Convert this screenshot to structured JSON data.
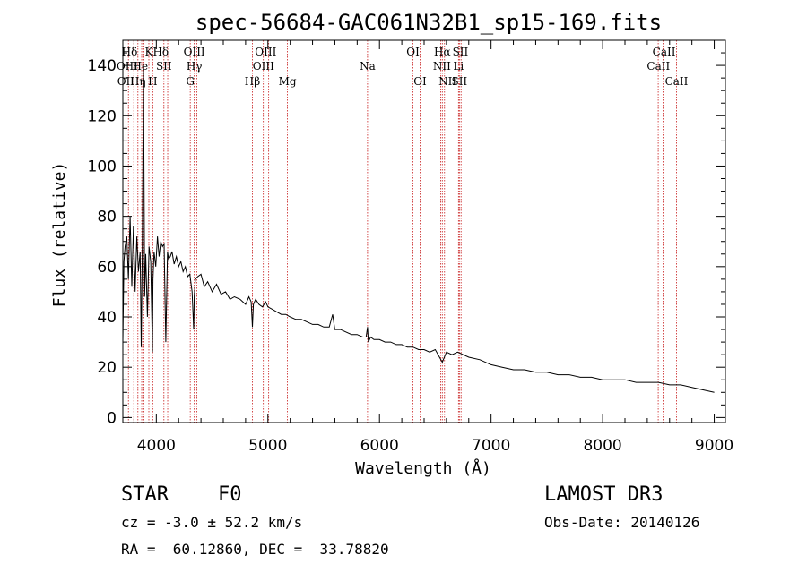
{
  "chart_data": {
    "type": "line",
    "title": "spec-56684-GAC061N32B1_sp15-169.fits",
    "xlabel": "Wavelength (Å)",
    "ylabel": "Flux (relative)",
    "xlim": [
      3700,
      9100
    ],
    "ylim": [
      -2,
      150
    ],
    "x_ticks": [
      4000,
      5000,
      6000,
      7000,
      8000,
      9000
    ],
    "x_tick_labels": [
      "4000",
      "5000",
      "6000",
      "7000",
      "8000",
      "9000"
    ],
    "y_ticks": [
      0,
      20,
      40,
      60,
      80,
      100,
      120,
      140
    ],
    "y_tick_labels": [
      "0",
      "20",
      "40",
      "60",
      "80",
      "100",
      "120",
      "140"
    ],
    "series": [
      {
        "name": "flux",
        "x": [
          3700,
          3710,
          3720,
          3735,
          3750,
          3765,
          3780,
          3795,
          3810,
          3825,
          3840,
          3855,
          3865,
          3875,
          3885,
          3895,
          3905,
          3920,
          3935,
          3950,
          3965,
          3970,
          3980,
          3995,
          4010,
          4025,
          4040,
          4055,
          4070,
          4085,
          4100,
          4110,
          4125,
          4140,
          4160,
          4180,
          4200,
          4220,
          4240,
          4260,
          4280,
          4300,
          4320,
          4335,
          4340,
          4350,
          4370,
          4400,
          4430,
          4460,
          4500,
          4540,
          4580,
          4620,
          4660,
          4700,
          4750,
          4800,
          4830,
          4850,
          4861,
          4870,
          4890,
          4920,
          4950,
          4980,
          5000,
          5040,
          5080,
          5120,
          5160,
          5200,
          5250,
          5300,
          5350,
          5400,
          5450,
          5500,
          5550,
          5580,
          5600,
          5650,
          5700,
          5750,
          5800,
          5850,
          5880,
          5893,
          5900,
          5920,
          5950,
          6000,
          6050,
          6100,
          6150,
          6200,
          6250,
          6300,
          6350,
          6400,
          6450,
          6500,
          6563,
          6600,
          6650,
          6700,
          6750,
          6800,
          6900,
          7000,
          7100,
          7200,
          7300,
          7400,
          7500,
          7600,
          7700,
          7800,
          7900,
          8000,
          8100,
          8200,
          8300,
          8400,
          8500,
          8600,
          8700,
          8800,
          8900,
          9000
        ],
        "y": [
          30,
          62,
          68,
          72,
          55,
          80,
          52,
          76,
          50,
          72,
          58,
          66,
          28,
          70,
          140,
          48,
          65,
          40,
          68,
          62,
          26,
          55,
          66,
          60,
          72,
          64,
          70,
          68,
          69,
          30,
          66,
          63,
          64,
          66,
          61,
          64,
          60,
          62,
          58,
          60,
          56,
          57,
          50,
          35,
          48,
          55,
          56,
          57,
          52,
          54,
          50,
          53,
          49,
          50,
          47,
          48,
          47,
          45,
          48,
          46,
          36,
          45,
          47,
          45,
          44,
          46,
          44,
          43,
          42,
          41,
          41,
          40,
          39,
          39,
          38,
          37,
          37,
          36,
          36,
          41,
          35,
          35,
          34,
          33,
          33,
          32,
          32,
          36,
          30,
          32,
          31,
          31,
          30,
          30,
          29,
          29,
          28,
          28,
          27,
          27,
          26,
          27,
          22,
          26,
          25,
          26,
          25,
          24,
          23,
          21,
          20,
          19,
          19,
          18,
          18,
          17,
          17,
          16,
          16,
          15,
          15,
          15,
          14,
          14,
          14,
          13,
          13,
          12,
          11,
          10
        ]
      }
    ],
    "line_labels": [
      {
        "label": "Hδ",
        "x": 3760,
        "row": 1
      },
      {
        "label": "K",
        "x": 3933,
        "row": 1
      },
      {
        "label": "Hδ",
        "x": 4040,
        "row": 1
      },
      {
        "label": "OIII",
        "x": 4340,
        "row": 1
      },
      {
        "label": "OIII",
        "x": 4980,
        "row": 1
      },
      {
        "label": "OI",
        "x": 6300,
        "row": 1
      },
      {
        "label": "Hα",
        "x": 6563,
        "row": 1
      },
      {
        "label": "SII",
        "x": 6725,
        "row": 1
      },
      {
        "label": "CaII",
        "x": 8550,
        "row": 1
      },
      {
        "label": "OIII",
        "x": 3740,
        "row": 2
      },
      {
        "label": "He",
        "x": 3855,
        "row": 2
      },
      {
        "label": "SII",
        "x": 4068,
        "row": 2
      },
      {
        "label": "Hγ",
        "x": 4340,
        "row": 2
      },
      {
        "label": "OIII",
        "x": 4960,
        "row": 2
      },
      {
        "label": "Na",
        "x": 5893,
        "row": 2
      },
      {
        "label": "NII",
        "x": 6560,
        "row": 2
      },
      {
        "label": "Li",
        "x": 6708,
        "row": 2
      },
      {
        "label": "CaII",
        "x": 8500,
        "row": 2
      },
      {
        "label": "OII",
        "x": 3727,
        "row": 3
      },
      {
        "label": "Hη",
        "x": 3835,
        "row": 3
      },
      {
        "label": "H",
        "x": 3968,
        "row": 3
      },
      {
        "label": "G",
        "x": 4304,
        "row": 3
      },
      {
        "label": "Hβ",
        "x": 4861,
        "row": 3
      },
      {
        "label": "Mg",
        "x": 5175,
        "row": 3
      },
      {
        "label": "OI",
        "x": 6364,
        "row": 3
      },
      {
        "label": "NII",
        "x": 6610,
        "row": 3
      },
      {
        "label": "SII",
        "x": 6716,
        "row": 3
      },
      {
        "label": "CaII",
        "x": 8662,
        "row": 3
      }
    ],
    "line_marks": [
      3727,
      3750,
      3798,
      3835,
      3869,
      3889,
      3933,
      3968,
      4068,
      4102,
      4304,
      4340,
      4363,
      4861,
      4959,
      5007,
      5175,
      5893,
      6300,
      6364,
      6548,
      6563,
      6583,
      6708,
      6716,
      6731,
      8498,
      8542,
      8662
    ],
    "grid": false
  },
  "info": {
    "object_class": "STAR",
    "subclass": "F0",
    "survey": "LAMOST DR3",
    "redshift": "cz = -3.0 ± 52.2 km/s",
    "obs_date": "Obs-Date: 20140126",
    "coords": "RA =  60.12860, DEC =  33.78820"
  },
  "colors": {
    "line_marker": "#c81e1e",
    "spectrum": "#000000",
    "axes": "#000000"
  }
}
